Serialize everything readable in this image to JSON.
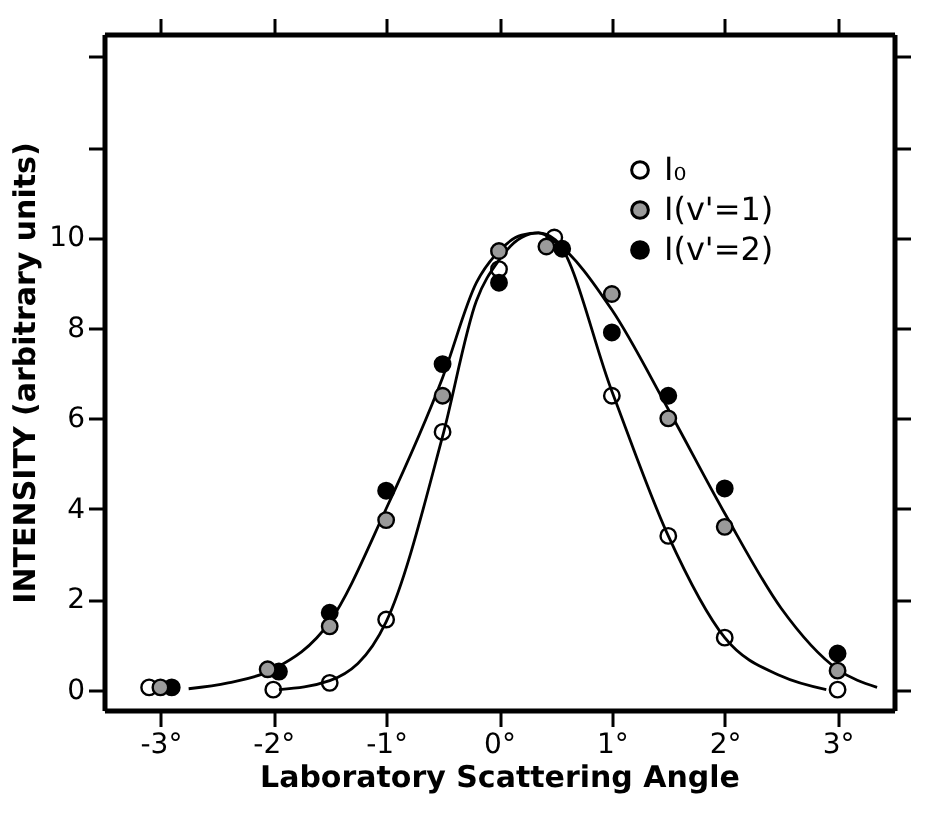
{
  "chart_data": {
    "type": "scatter",
    "xlabel": "Laboratory Scattering Angle",
    "ylabel": "INTENSITY (arbitrary units)",
    "xlim": [
      -3.5,
      3.5
    ],
    "ylim": [
      -0.45,
      14.5
    ],
    "xticks": [
      {
        "value": -3,
        "label": "-3°"
      },
      {
        "value": -2,
        "label": "-2°"
      },
      {
        "value": -1,
        "label": "-1°"
      },
      {
        "value": 0,
        "label": "0°"
      },
      {
        "value": 1,
        "label": "1°"
      },
      {
        "value": 2,
        "label": "2°"
      },
      {
        "value": 3,
        "label": "3°"
      }
    ],
    "yticks": [
      0,
      2,
      4,
      6,
      8,
      10,
      {
        "value": 12,
        "label": null
      },
      {
        "value": 14,
        "label": null
      }
    ],
    "grid": false,
    "legend": "top right",
    "marker": "circle",
    "series": [
      {
        "name": "I₀",
        "color": "#000000",
        "x": [
          -3.1,
          -2,
          -1.5,
          -1,
          -0.5,
          0,
          0.49,
          1,
          1.5,
          2,
          3
        ],
        "values": [
          0.05,
          0.0,
          0.15,
          1.55,
          5.7,
          9.3,
          10.0,
          6.5,
          3.4,
          1.15,
          0.0
        ]
      },
      {
        "name": "I(v'=1)",
        "color": "#000000",
        "x": [
          -3.0,
          -2.05,
          -1.5,
          -1,
          -0.5,
          0,
          0.42,
          1,
          1.5,
          2,
          3
        ],
        "values": [
          0.05,
          0.45,
          1.4,
          3.75,
          6.5,
          9.7,
          9.8,
          8.75,
          6.0,
          3.6,
          0.42
        ]
      },
      {
        "name": "I(v'=2)",
        "color": "#000000",
        "x": [
          -2.9,
          -1.95,
          -1.5,
          -1,
          -0.5,
          0,
          0.56,
          1,
          1.5,
          2,
          3
        ],
        "values": [
          0.05,
          0.4,
          1.7,
          4.4,
          7.2,
          9.0,
          9.75,
          7.9,
          6.5,
          4.45,
          0.8
        ]
      },
      {
        "type": "line",
        "color": "#000000",
        "marker": "none",
        "x": [
          -2.75,
          -2.4,
          -2.0,
          -1.5,
          -1.0,
          -0.5,
          -0.2,
          0,
          0.2,
          0.35,
          0.5,
          1,
          1.5,
          2,
          2.5,
          3,
          3.35
        ],
        "values": [
          0.02,
          0.15,
          0.45,
          1.5,
          4.0,
          6.9,
          9.0,
          9.7,
          10.05,
          10.1,
          9.9,
          8.4,
          6.2,
          3.9,
          1.8,
          0.45,
          0.05
        ]
      },
      {
        "type": "line",
        "color": "#000000",
        "marker": "none",
        "x": [
          -1.95,
          -1.5,
          -1,
          -0.5,
          -0.2,
          0,
          0.2,
          0.35,
          0.5,
          1,
          1.5,
          2,
          2.5,
          2.9
        ],
        "values": [
          0.0,
          0.2,
          1.5,
          5.6,
          8.6,
          9.5,
          10.0,
          10.1,
          9.95,
          6.6,
          3.4,
          1.15,
          0.3,
          0.0
        ]
      }
    ]
  }
}
